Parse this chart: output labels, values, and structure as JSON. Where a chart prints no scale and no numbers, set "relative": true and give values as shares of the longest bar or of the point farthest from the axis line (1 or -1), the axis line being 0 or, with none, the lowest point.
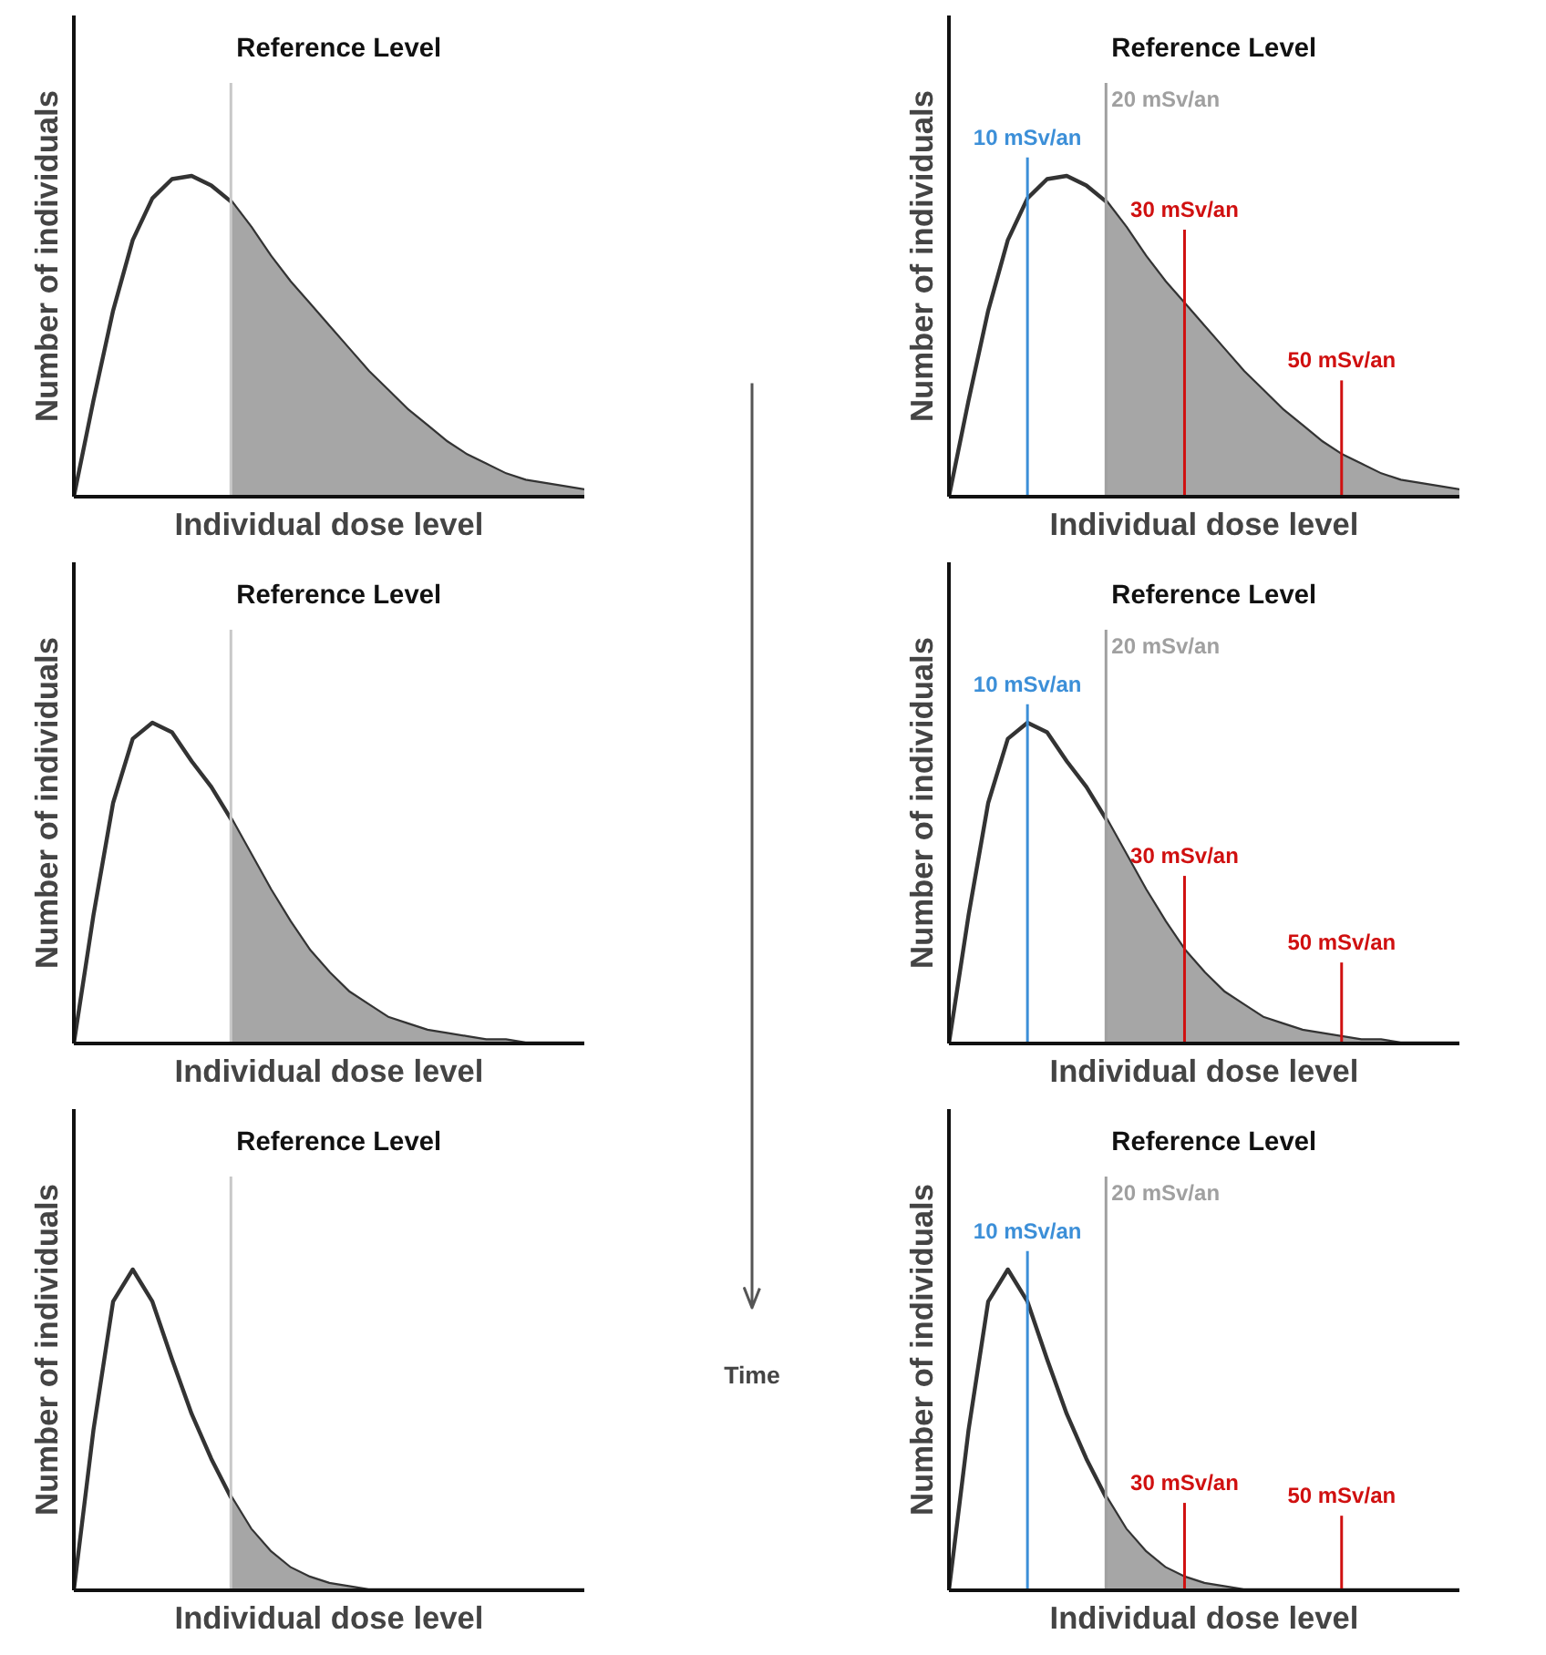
{
  "chart_data": [
    {
      "type": "line",
      "relative": true,
      "xlabel": "Individual dose level",
      "ylabel": "Number of individuals",
      "categories": [
        null,
        null,
        null,
        null,
        null,
        null,
        null,
        null,
        null,
        null,
        null,
        null,
        null,
        null,
        null,
        null,
        null,
        null,
        null,
        null,
        null,
        null,
        null,
        null,
        null,
        null,
        null
      ],
      "series": [
        {
          "color": "#333333",
          "values": [
            0,
            0.3,
            0.58,
            0.8,
            0.93,
            0.99,
            1.0,
            0.97,
            0.92,
            0.84,
            0.75,
            0.67,
            0.6,
            0.53,
            0.46,
            0.39,
            0.33,
            0.27,
            0.22,
            0.17,
            0.13,
            0.1,
            0.07,
            0.05,
            0.04,
            0.03,
            0.02
          ]
        },
        {
          "type": "area",
          "color": "#a6a6a6",
          "values": [
            null,
            null,
            null,
            null,
            null,
            null,
            null,
            null,
            0.92,
            0.84,
            0.75,
            0.67,
            0.6,
            0.53,
            0.46,
            0.39,
            0.33,
            0.27,
            0.22,
            0.17,
            0.13,
            0.1,
            0.07,
            0.05,
            0.04,
            0.03,
            0.02
          ]
        }
      ],
      "annotations": [
        "Reference Level"
      ]
    },
    {
      "type": "line",
      "relative": true,
      "xlabel": "Individual dose level",
      "ylabel": "Number of individuals",
      "categories": [
        null,
        null,
        null,
        null,
        null,
        null,
        null,
        null,
        null,
        null,
        null,
        null,
        null,
        null,
        null,
        null,
        null,
        null,
        null,
        null,
        null,
        null,
        null,
        null,
        null,
        null,
        null
      ],
      "series": [
        {
          "color": "#333333",
          "values": [
            0,
            0.3,
            0.58,
            0.8,
            0.93,
            0.99,
            1.0,
            0.97,
            0.92,
            0.84,
            0.75,
            0.67,
            0.6,
            0.53,
            0.46,
            0.39,
            0.33,
            0.27,
            0.22,
            0.17,
            0.13,
            0.1,
            0.07,
            0.05,
            0.04,
            0.03,
            0.02
          ]
        },
        {
          "type": "area",
          "color": "#a6a6a6",
          "values": [
            null,
            null,
            null,
            null,
            null,
            null,
            null,
            null,
            0.92,
            0.84,
            0.75,
            0.67,
            0.6,
            0.53,
            0.46,
            0.39,
            0.33,
            0.27,
            0.22,
            0.17,
            0.13,
            0.1,
            0.07,
            0.05,
            0.04,
            0.03,
            0.02
          ]
        }
      ],
      "annotations": [
        "Reference Level",
        "10 mSv/an",
        "20 mSv/an",
        "30 mSv/an",
        "50 mSv/an"
      ]
    },
    {
      "type": "line",
      "relative": true,
      "xlabel": "Individual dose level",
      "ylabel": "Number of individuals",
      "categories": [
        null,
        null,
        null,
        null,
        null,
        null,
        null,
        null,
        null,
        null,
        null,
        null,
        null,
        null,
        null,
        null,
        null,
        null,
        null,
        null,
        null,
        null,
        null,
        null,
        null,
        null,
        null
      ],
      "series": [
        {
          "color": "#333333",
          "values": [
            0,
            0.4,
            0.75,
            0.95,
            1.0,
            0.97,
            0.88,
            0.8,
            0.7,
            0.59,
            0.48,
            0.38,
            0.29,
            0.22,
            0.16,
            0.12,
            0.08,
            0.06,
            0.04,
            0.03,
            0.02,
            0.01,
            0.01,
            0,
            0,
            0,
            0
          ]
        },
        {
          "type": "area",
          "color": "#a6a6a6",
          "values": [
            null,
            null,
            null,
            null,
            null,
            null,
            null,
            null,
            0.7,
            0.59,
            0.48,
            0.38,
            0.29,
            0.22,
            0.16,
            0.12,
            0.08,
            0.06,
            0.04,
            0.03,
            0.02,
            0.01,
            0.01,
            0,
            0,
            0,
            0
          ]
        }
      ],
      "annotations": [
        "Reference Level"
      ]
    },
    {
      "type": "line",
      "relative": true,
      "xlabel": "Individual dose level",
      "ylabel": "Number of individuals",
      "categories": [
        null,
        null,
        null,
        null,
        null,
        null,
        null,
        null,
        null,
        null,
        null,
        null,
        null,
        null,
        null,
        null,
        null,
        null,
        null,
        null,
        null,
        null,
        null,
        null,
        null,
        null,
        null
      ],
      "series": [
        {
          "color": "#333333",
          "values": [
            0,
            0.4,
            0.75,
            0.95,
            1.0,
            0.97,
            0.88,
            0.8,
            0.7,
            0.59,
            0.48,
            0.38,
            0.29,
            0.22,
            0.16,
            0.12,
            0.08,
            0.06,
            0.04,
            0.03,
            0.02,
            0.01,
            0.01,
            0,
            0,
            0,
            0
          ]
        },
        {
          "type": "area",
          "color": "#a6a6a6",
          "values": [
            null,
            null,
            null,
            null,
            null,
            null,
            null,
            null,
            0.7,
            0.59,
            0.48,
            0.38,
            0.29,
            0.22,
            0.16,
            0.12,
            0.08,
            0.06,
            0.04,
            0.03,
            0.02,
            0.01,
            0.01,
            0,
            0,
            0,
            0
          ]
        }
      ],
      "annotations": [
        "Reference Level",
        "10 mSv/an",
        "20 mSv/an",
        "30 mSv/an",
        "50 mSv/an"
      ]
    },
    {
      "type": "line",
      "relative": true,
      "xlabel": "Individual dose level",
      "ylabel": "Number of individuals",
      "categories": [
        null,
        null,
        null,
        null,
        null,
        null,
        null,
        null,
        null,
        null,
        null,
        null,
        null,
        null,
        null,
        null,
        null,
        null,
        null,
        null,
        null,
        null,
        null,
        null,
        null,
        null,
        null
      ],
      "series": [
        {
          "color": "#333333",
          "values": [
            0,
            0.5,
            0.9,
            1.0,
            0.9,
            0.72,
            0.55,
            0.41,
            0.29,
            0.19,
            0.12,
            0.07,
            0.04,
            0.02,
            0.01,
            0,
            0,
            0,
            0,
            0,
            0,
            0,
            0,
            0,
            0,
            0,
            0
          ]
        },
        {
          "type": "area",
          "color": "#a6a6a6",
          "values": [
            null,
            null,
            null,
            null,
            null,
            null,
            null,
            null,
            0.29,
            0.19,
            0.12,
            0.07,
            0.04,
            0.02,
            0.01,
            0,
            0,
            0,
            0,
            0,
            0,
            0,
            0,
            0,
            0,
            0,
            0
          ]
        }
      ],
      "annotations": [
        "Reference Level"
      ]
    },
    {
      "type": "line",
      "relative": true,
      "xlabel": "Individual dose level",
      "ylabel": "Number of individuals",
      "categories": [
        null,
        null,
        null,
        null,
        null,
        null,
        null,
        null,
        null,
        null,
        null,
        null,
        null,
        null,
        null,
        null,
        null,
        null,
        null,
        null,
        null,
        null,
        null,
        null,
        null,
        null,
        null
      ],
      "series": [
        {
          "color": "#333333",
          "values": [
            0,
            0.5,
            0.9,
            1.0,
            0.9,
            0.72,
            0.55,
            0.41,
            0.29,
            0.19,
            0.12,
            0.07,
            0.04,
            0.02,
            0.01,
            0,
            0,
            0,
            0,
            0,
            0,
            0,
            0,
            0,
            0,
            0,
            0
          ]
        },
        {
          "type": "area",
          "color": "#a6a6a6",
          "values": [
            null,
            null,
            null,
            null,
            null,
            null,
            null,
            null,
            0.29,
            0.19,
            0.12,
            0.07,
            0.04,
            0.02,
            0.01,
            0,
            0,
            0,
            0,
            0,
            0,
            0,
            0,
            0,
            0,
            0,
            0
          ]
        }
      ],
      "annotations": [
        "Reference Level",
        "10 mSv/an",
        "20 mSv/an",
        "30 mSv/an",
        "50 mSv/an"
      ]
    },
    {
      "type": "other",
      "annotations": [
        "Time"
      ]
    }
  ]
}
